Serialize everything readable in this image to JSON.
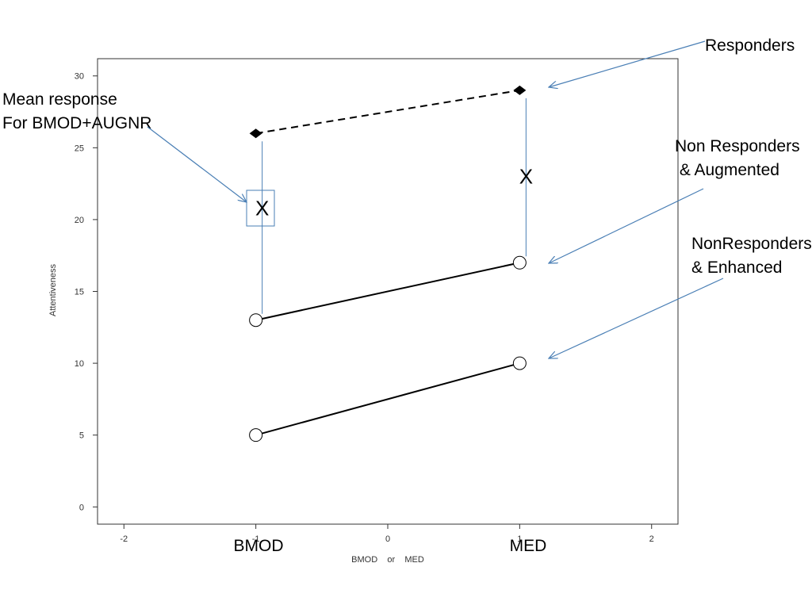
{
  "chart_data": {
    "type": "line",
    "xlabel": "BMOD    or    MED",
    "ylabel": "Attentiveness",
    "xlim": [
      -2.2,
      2.2
    ],
    "ylim": [
      -1.2,
      31.2
    ],
    "x_ticks": [
      -2,
      -1,
      0,
      1,
      2
    ],
    "x_tick_labels": [
      "-2",
      "-1",
      "0",
      "1",
      "2"
    ],
    "y_ticks": [
      0,
      5,
      10,
      15,
      20,
      25,
      30
    ],
    "y_tick_labels": [
      "0",
      "5",
      "10",
      "15",
      "20",
      "25",
      "30"
    ],
    "grid": false,
    "series": [
      {
        "key": "responders",
        "x": [
          -1,
          1
        ],
        "y": [
          26,
          29
        ],
        "marker": "diamond",
        "line": "dashed"
      },
      {
        "key": "augmented",
        "x": [
          -1,
          1
        ],
        "y": [
          13,
          17
        ],
        "marker": "circle",
        "line": "solid"
      },
      {
        "key": "enhanced",
        "x": [
          -1,
          1
        ],
        "y": [
          5,
          10
        ],
        "marker": "circle",
        "line": "solid"
      }
    ],
    "category_labels": [
      "BMOD",
      "MED"
    ],
    "mean_markers": [
      {
        "label": "X",
        "x": -1,
        "y": 20.8,
        "boxed": true
      },
      {
        "label": "X",
        "x": 1,
        "y": 23,
        "boxed": false
      }
    ],
    "mean_span_lines": [
      {
        "x": -1,
        "from": 13,
        "to": 26
      },
      {
        "x": 1,
        "from": 17,
        "to": 29
      }
    ],
    "annotations": [
      {
        "lines": [
          "Mean response",
          "For BMOD+AUGNR"
        ]
      },
      {
        "lines": [
          "Responders"
        ]
      },
      {
        "lines": [
          "Non Responders",
          " & Augmented"
        ]
      },
      {
        "lines": [
          "NonResponders",
          "& Enhanced"
        ]
      }
    ],
    "colors": {
      "annotation": "#4a7fb5",
      "series": "#000000",
      "frame": "#333333"
    }
  }
}
